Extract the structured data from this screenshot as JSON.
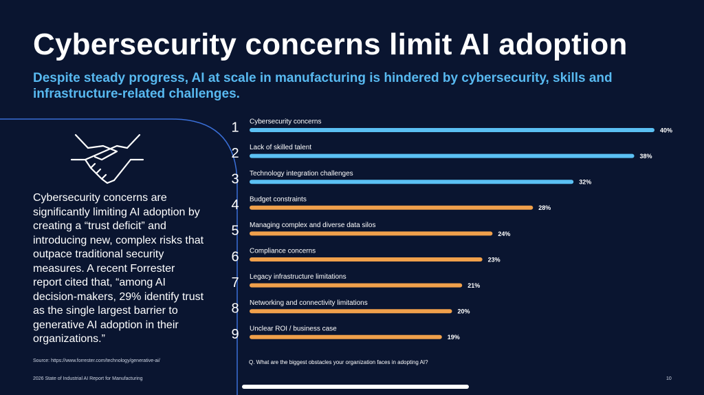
{
  "title": "Cybersecurity concerns limit AI adoption",
  "subtitle": "Despite steady progress, AI at scale in manufacturing is hindered by cybersecurity, skills and infrastructure-related challenges.",
  "body": "Cybersecurity concerns are significantly limiting AI adoption by creating a “trust deficit” and introducing new, complex risks that outpace traditional security measures. A recent Forrester report cited that, “among AI decision-makers, 29% identify trust as the single largest barrier to generative AI adoption in their organizations.”",
  "source": "Source: https://www.forrester.com/technology/generative-ai/",
  "footer": "2026 State of Industrial AI Report for Manufacturing",
  "page_number": "10",
  "chart_data": {
    "type": "bar",
    "orientation": "horizontal",
    "ranks": [
      "1",
      "2",
      "3",
      "4",
      "5",
      "6",
      "7",
      "8",
      "9"
    ],
    "categories": [
      "Cybersecurity concerns",
      "Lack of skilled talent",
      "Technology integration challenges",
      "Budget constraints",
      "Managing complex and diverse data silos",
      "Compliance concerns",
      "Legacy infrastructure limitations",
      "Networking and connectivity limitations",
      "Unclear ROI / business case"
    ],
    "values": [
      40,
      38,
      32,
      28,
      24,
      23,
      21,
      20,
      19
    ],
    "value_labels": [
      "40%",
      "38%",
      "32%",
      "28%",
      "24%",
      "23%",
      "21%",
      "20%",
      "19%"
    ],
    "colors": [
      "#5bc0f3",
      "#5bc0f3",
      "#5bc0f3",
      "#f0a04b",
      "#f0a04b",
      "#f0a04b",
      "#f0a04b",
      "#f0a04b",
      "#f0a04b"
    ],
    "question": "Q. What are the biggest obstacles your organization faces in adopting AI?"
  }
}
